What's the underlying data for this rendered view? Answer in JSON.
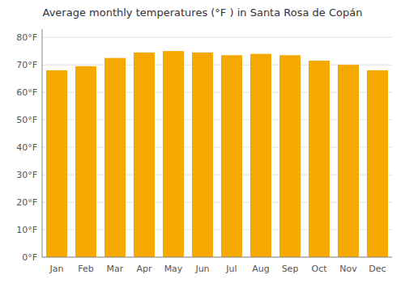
{
  "chart_data": {
    "type": "bar",
    "title": "Average monthly temperatures (°F ) in Santa Rosa de Copán",
    "categories": [
      "Jan",
      "Feb",
      "Mar",
      "Apr",
      "May",
      "Jun",
      "Jul",
      "Aug",
      "Sep",
      "Oct",
      "Nov",
      "Dec"
    ],
    "values": [
      68,
      69.5,
      72.5,
      74.5,
      75,
      74.5,
      73.5,
      74,
      73.5,
      71.5,
      70,
      68
    ],
    "color": "#F5A800",
    "ylim": [
      0,
      83
    ],
    "yticks": [
      {
        "value": 0,
        "label": "0°F"
      },
      {
        "value": 10,
        "label": "10°F"
      },
      {
        "value": 20,
        "label": "20°F"
      },
      {
        "value": 30,
        "label": "30°F"
      },
      {
        "value": 40,
        "label": "40°F"
      },
      {
        "value": 50,
        "label": "50°F"
      },
      {
        "value": 60,
        "label": "60°F"
      },
      {
        "value": 70,
        "label": "70°F"
      },
      {
        "value": 80,
        "label": "80°F"
      }
    ],
    "grid": true
  }
}
